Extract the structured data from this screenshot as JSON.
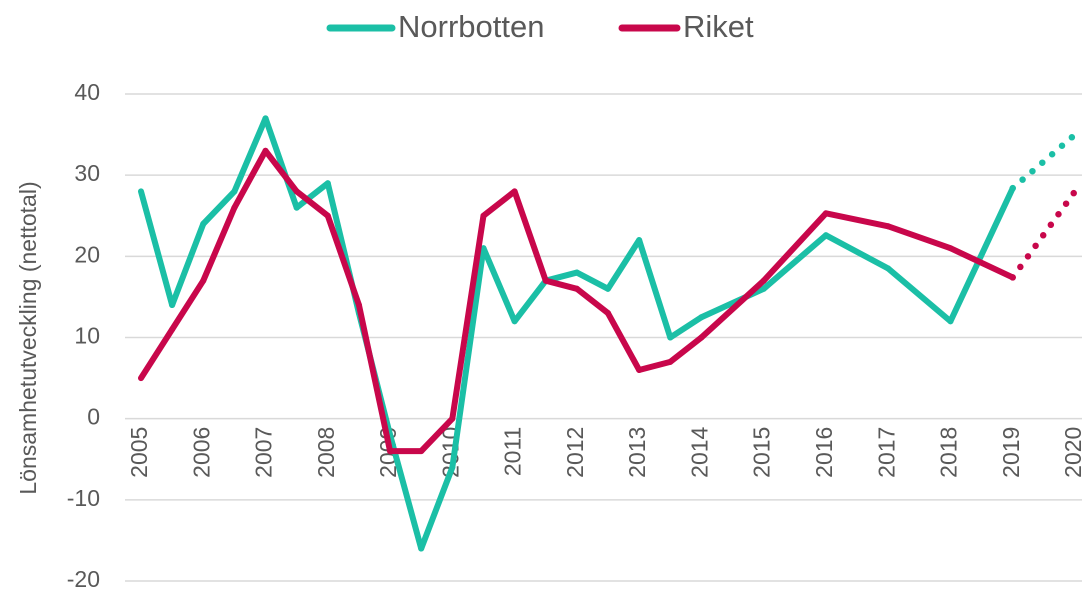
{
  "chart_data": {
    "type": "line",
    "y_label": "Lönsamhetutveckling (nettotal)",
    "x": [
      2005,
      2005.5,
      2006,
      2006.5,
      2007,
      2007.5,
      2008,
      2008.5,
      2009,
      2009.5,
      2010,
      2010.5,
      2011,
      2011.5,
      2012,
      2012.5,
      2013,
      2013.5,
      2014,
      2015,
      2016,
      2017,
      2018,
      2019,
      2020
    ],
    "series": [
      {
        "name": "Norrbotten",
        "color": "#1bbfa6",
        "values": [
          28,
          14,
          24,
          28,
          37,
          26,
          29,
          13,
          -2,
          -16,
          -6,
          21,
          12,
          17,
          18,
          16,
          22,
          10,
          12.5,
          16,
          22.6,
          18.5,
          12,
          28.4,
          35
        ]
      },
      {
        "name": "Riket",
        "color": "#c8074b",
        "values": [
          5,
          11,
          17,
          26,
          33,
          28,
          25,
          14,
          -4,
          -4,
          0,
          25,
          28,
          17,
          16,
          13,
          6,
          7,
          10,
          17,
          25.3,
          23.7,
          21,
          17.4,
          28
        ]
      }
    ],
    "forecast_from": 2019,
    "xlim": [
      2005,
      2020
    ],
    "xticks": [
      2005,
      2006,
      2007,
      2008,
      2009,
      2010,
      2011,
      2012,
      2013,
      2014,
      2015,
      2016,
      2017,
      2018,
      2019,
      2020
    ],
    "ylim": [
      -20,
      40
    ],
    "yticks": [
      -20,
      -10,
      0,
      10,
      20,
      30,
      40
    ],
    "grid": true,
    "legend": "top"
  }
}
